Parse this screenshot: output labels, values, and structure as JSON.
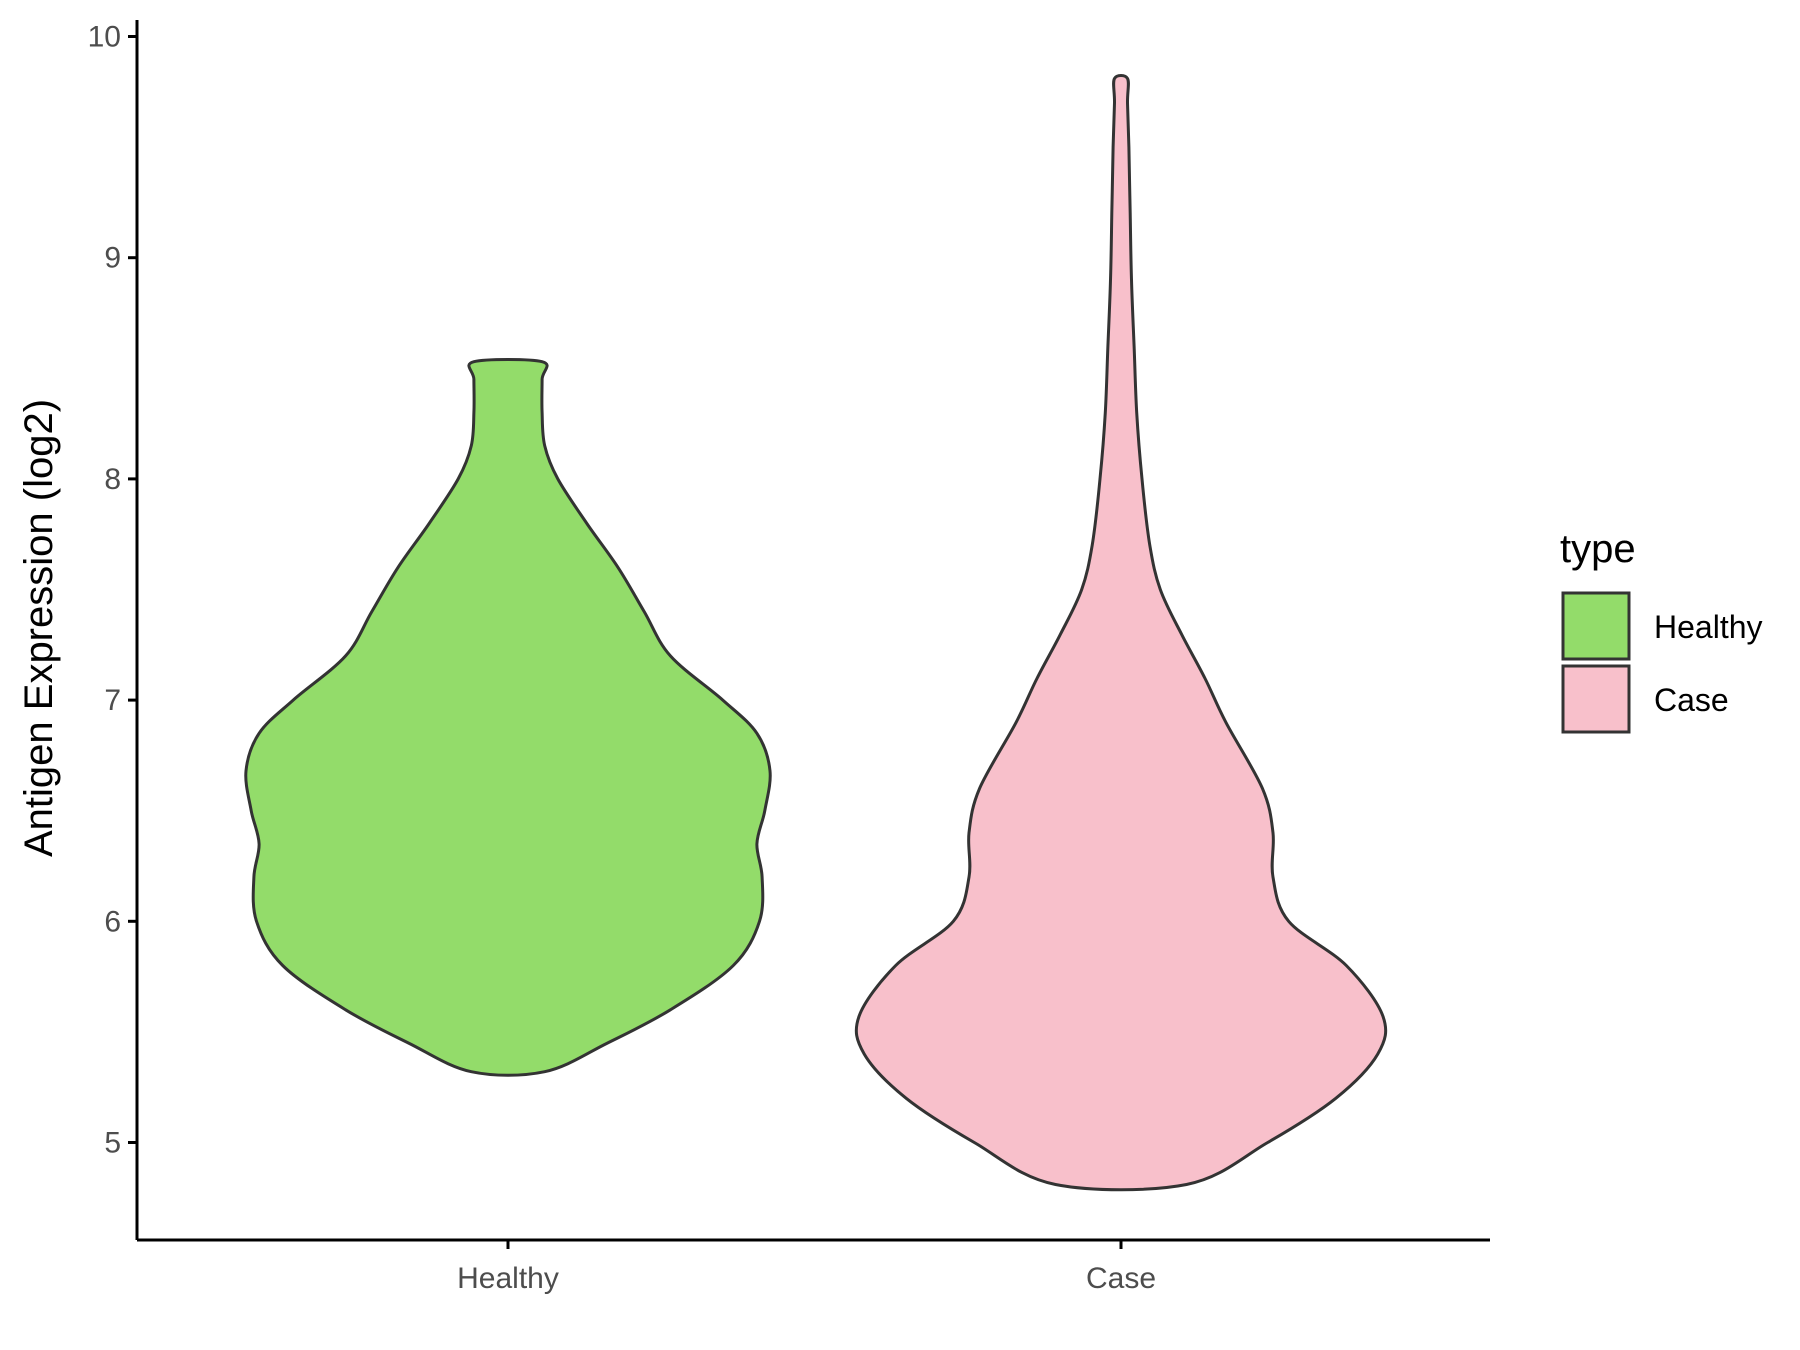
{
  "chart_data": {
    "type": "violin",
    "title": "",
    "xlabel": "",
    "ylabel": "Antigen Expression (log2)",
    "ylim": [
      4.55,
      10.1
    ],
    "yticks": [
      5,
      6,
      7,
      8,
      9,
      10
    ],
    "categories": [
      "Healthy",
      "Case"
    ],
    "grid": false,
    "legend": {
      "title": "type",
      "position": "right",
      "entries": [
        {
          "label": "Healthy",
          "color": "#93DC6A"
        },
        {
          "label": "Case",
          "color": "#F8C0CB"
        }
      ]
    },
    "series": [
      {
        "category": "Healthy",
        "color": "#93DC6A",
        "min": 5.32,
        "max": 8.53,
        "density_profile": [
          [
            5.32,
            0.14
          ],
          [
            5.45,
            0.38
          ],
          [
            5.6,
            0.62
          ],
          [
            5.8,
            0.86
          ],
          [
            6.0,
            0.96
          ],
          [
            6.2,
            0.97
          ],
          [
            6.35,
            0.95
          ],
          [
            6.5,
            0.98
          ],
          [
            6.68,
            1.0
          ],
          [
            6.85,
            0.95
          ],
          [
            7.0,
            0.82
          ],
          [
            7.2,
            0.62
          ],
          [
            7.4,
            0.52
          ],
          [
            7.6,
            0.42
          ],
          [
            7.8,
            0.3
          ],
          [
            8.0,
            0.19
          ],
          [
            8.15,
            0.14
          ],
          [
            8.3,
            0.13
          ],
          [
            8.45,
            0.13
          ],
          [
            8.53,
            0.13
          ]
        ]
      },
      {
        "category": "Case",
        "color": "#F8C0CB",
        "min": 4.81,
        "max": 9.81,
        "density_profile": [
          [
            4.81,
            0.25
          ],
          [
            5.0,
            0.56
          ],
          [
            5.2,
            0.82
          ],
          [
            5.4,
            0.98
          ],
          [
            5.57,
            1.0
          ],
          [
            5.8,
            0.86
          ],
          [
            6.0,
            0.64
          ],
          [
            6.2,
            0.58
          ],
          [
            6.4,
            0.58
          ],
          [
            6.6,
            0.54
          ],
          [
            6.9,
            0.4
          ],
          [
            7.1,
            0.32
          ],
          [
            7.3,
            0.23
          ],
          [
            7.5,
            0.15
          ],
          [
            7.7,
            0.11
          ],
          [
            8.0,
            0.08
          ],
          [
            8.3,
            0.06
          ],
          [
            8.6,
            0.05
          ],
          [
            8.9,
            0.04
          ],
          [
            9.2,
            0.035
          ],
          [
            9.5,
            0.03
          ],
          [
            9.7,
            0.025
          ],
          [
            9.81,
            0.025
          ]
        ]
      }
    ]
  }
}
